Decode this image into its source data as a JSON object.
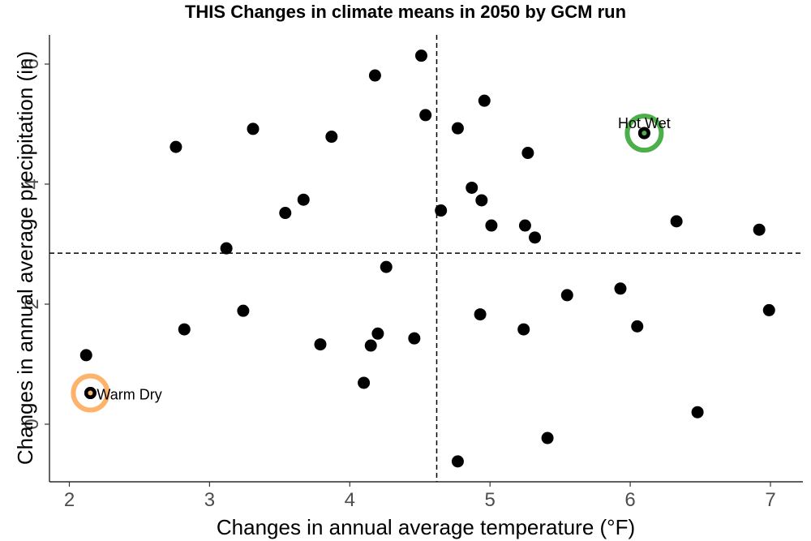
{
  "chart_data": {
    "type": "scatter",
    "title": "THIS Changes in climate means in 2050 by GCM run",
    "xlabel": "Changes in annual average temperature (°F)",
    "ylabel": "Changes in annual average precipitation (in)",
    "xlim": [
      1.9,
      7.25
    ],
    "ylim": [
      -0.95,
      6.5
    ],
    "xticks": [
      2,
      3,
      4,
      5,
      6,
      7
    ],
    "yticks": [
      0,
      2,
      4,
      6
    ],
    "grid": false,
    "reference_lines": {
      "vertical_x": 4.62,
      "horizontal_y": 2.85
    },
    "points": [
      {
        "x": 2.12,
        "y": 1.15
      },
      {
        "x": 2.15,
        "y": 0.52
      },
      {
        "x": 2.76,
        "y": 4.62
      },
      {
        "x": 2.82,
        "y": 1.58
      },
      {
        "x": 3.12,
        "y": 2.93
      },
      {
        "x": 3.24,
        "y": 1.89
      },
      {
        "x": 3.31,
        "y": 4.92
      },
      {
        "x": 3.54,
        "y": 3.52
      },
      {
        "x": 3.67,
        "y": 3.74
      },
      {
        "x": 3.79,
        "y": 1.33
      },
      {
        "x": 3.87,
        "y": 4.79
      },
      {
        "x": 4.1,
        "y": 0.69
      },
      {
        "x": 4.15,
        "y": 1.31
      },
      {
        "x": 4.18,
        "y": 5.81
      },
      {
        "x": 4.2,
        "y": 1.51
      },
      {
        "x": 4.26,
        "y": 2.62
      },
      {
        "x": 4.46,
        "y": 1.43
      },
      {
        "x": 4.51,
        "y": 6.14
      },
      {
        "x": 4.54,
        "y": 5.15
      },
      {
        "x": 4.65,
        "y": 3.56
      },
      {
        "x": 4.77,
        "y": 4.93
      },
      {
        "x": 4.77,
        "y": -0.62
      },
      {
        "x": 4.87,
        "y": 3.94
      },
      {
        "x": 4.93,
        "y": 1.83
      },
      {
        "x": 4.94,
        "y": 3.73
      },
      {
        "x": 4.96,
        "y": 5.39
      },
      {
        "x": 5.01,
        "y": 3.31
      },
      {
        "x": 5.24,
        "y": 1.58
      },
      {
        "x": 5.25,
        "y": 3.31
      },
      {
        "x": 5.27,
        "y": 4.52
      },
      {
        "x": 5.32,
        "y": 3.11
      },
      {
        "x": 5.41,
        "y": -0.23
      },
      {
        "x": 5.55,
        "y": 2.15
      },
      {
        "x": 5.93,
        "y": 2.26
      },
      {
        "x": 6.05,
        "y": 1.63
      },
      {
        "x": 6.1,
        "y": 4.85
      },
      {
        "x": 6.33,
        "y": 3.38
      },
      {
        "x": 6.48,
        "y": 0.2
      },
      {
        "x": 6.92,
        "y": 3.24
      },
      {
        "x": 6.99,
        "y": 1.9
      }
    ],
    "highlights": [
      {
        "label": "Hot Wet",
        "x": 6.1,
        "y": 4.85,
        "color": "#4daf4a"
      },
      {
        "label": "Warm Dry",
        "x": 2.15,
        "y": 0.52,
        "color": "#fdb36b"
      }
    ]
  }
}
